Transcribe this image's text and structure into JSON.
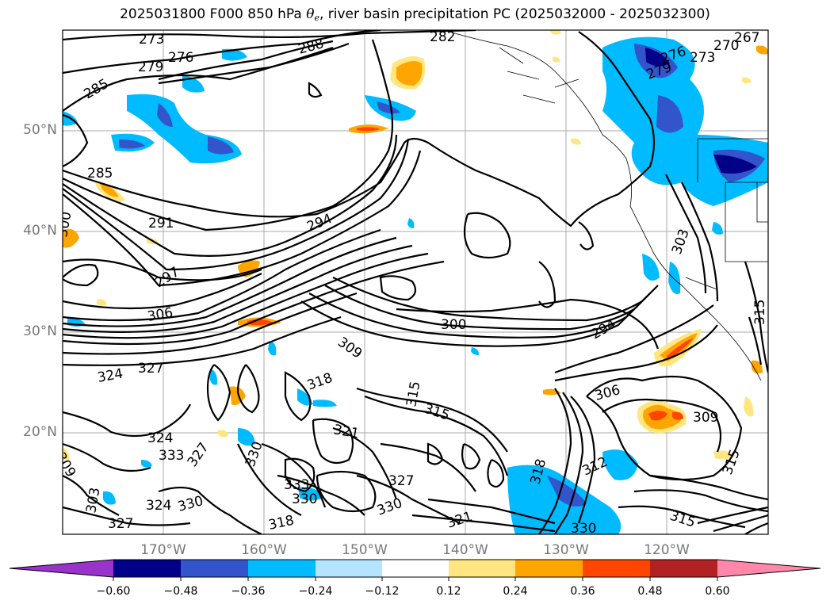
{
  "title": {
    "prefix": "2025031800 F000 850 hPa ",
    "theta_symbol": "θ",
    "theta_sub": "e",
    "suffix": ", river basin precipitation PC (2025032000 - 2025032300)"
  },
  "axes": {
    "lon_labels": [
      "170°W",
      "160°W",
      "150°W",
      "140°W",
      "130°W",
      "120°W"
    ],
    "lat_labels": [
      "50°N",
      "40°N",
      "30°N",
      "20°N"
    ],
    "gridlines": true
  },
  "colorbar": {
    "ticks": [
      "−0.60",
      "−0.48",
      "−0.36",
      "−0.24",
      "−0.12",
      "0.12",
      "0.24",
      "0.36",
      "0.48",
      "0.60"
    ],
    "colors": [
      "#9933cc",
      "#000088",
      "#3355cc",
      "#00bbff",
      "#b3e5ff",
      "#ffffff",
      "#ffe680",
      "#ffa500",
      "#ff4500",
      "#b22222",
      "#ff88aa"
    ],
    "extend": "both"
  },
  "contour_labels": [
    {
      "text": "273"
    },
    {
      "text": "282"
    },
    {
      "text": "267"
    },
    {
      "text": "270"
    },
    {
      "text": "273"
    },
    {
      "text": "276"
    },
    {
      "text": "279"
    },
    {
      "text": "288"
    },
    {
      "text": "285"
    },
    {
      "text": "285"
    },
    {
      "text": "291"
    },
    {
      "text": "294"
    },
    {
      "text": "297"
    },
    {
      "text": "300"
    },
    {
      "text": "303"
    },
    {
      "text": "306"
    },
    {
      "text": "309"
    },
    {
      "text": "300"
    },
    {
      "text": "294"
    },
    {
      "text": "309"
    },
    {
      "text": "315"
    },
    {
      "text": "315"
    },
    {
      "text": "318"
    },
    {
      "text": "321"
    },
    {
      "text": "324"
    },
    {
      "text": "327"
    },
    {
      "text": "324"
    },
    {
      "text": "333"
    },
    {
      "text": "327"
    },
    {
      "text": "330"
    },
    {
      "text": "333"
    },
    {
      "text": "330"
    },
    {
      "text": "327"
    },
    {
      "text": "324"
    },
    {
      "text": "330"
    },
    {
      "text": "327"
    },
    {
      "text": "318"
    },
    {
      "text": "321"
    },
    {
      "text": "330"
    },
    {
      "text": "330"
    },
    {
      "text": "312"
    },
    {
      "text": "306"
    },
    {
      "text": "309"
    },
    {
      "text": "315"
    },
    {
      "text": "318"
    },
    {
      "text": "303"
    },
    {
      "text": "315"
    },
    {
      "text": "315"
    },
    {
      "text": "276"
    },
    {
      "text": "279"
    }
  ]
}
